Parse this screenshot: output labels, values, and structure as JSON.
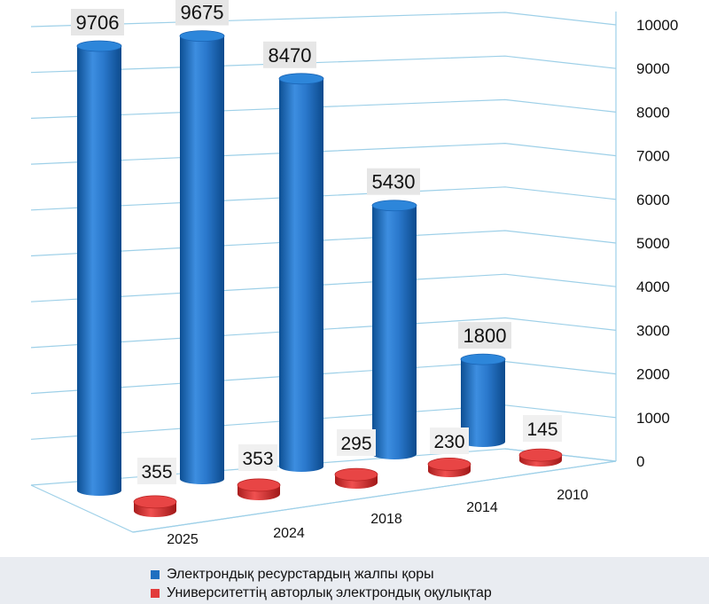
{
  "chart_data": {
    "type": "bar",
    "categories": [
      "2025",
      "2024",
      "2018",
      "2014",
      "2010"
    ],
    "series": [
      {
        "name": "Электрондық ресурстардың жалпы қоры",
        "values": [
          9706,
          9675,
          8470,
          5430,
          1800
        ],
        "color": "#1f6fc0"
      },
      {
        "name": "Университеттің авторлық электрондық оқулықтар",
        "values": [
          355,
          353,
          295,
          230,
          145
        ],
        "color": "#e23b3b"
      }
    ],
    "yticks": [
      "0",
      "1000",
      "2000",
      "3000",
      "4000",
      "5000",
      "6000",
      "7000",
      "8000",
      "9000",
      "10000"
    ],
    "ylim": [
      0,
      10000
    ],
    "grid": true,
    "legend_position": "bottom",
    "style": "3d-cylinder"
  }
}
